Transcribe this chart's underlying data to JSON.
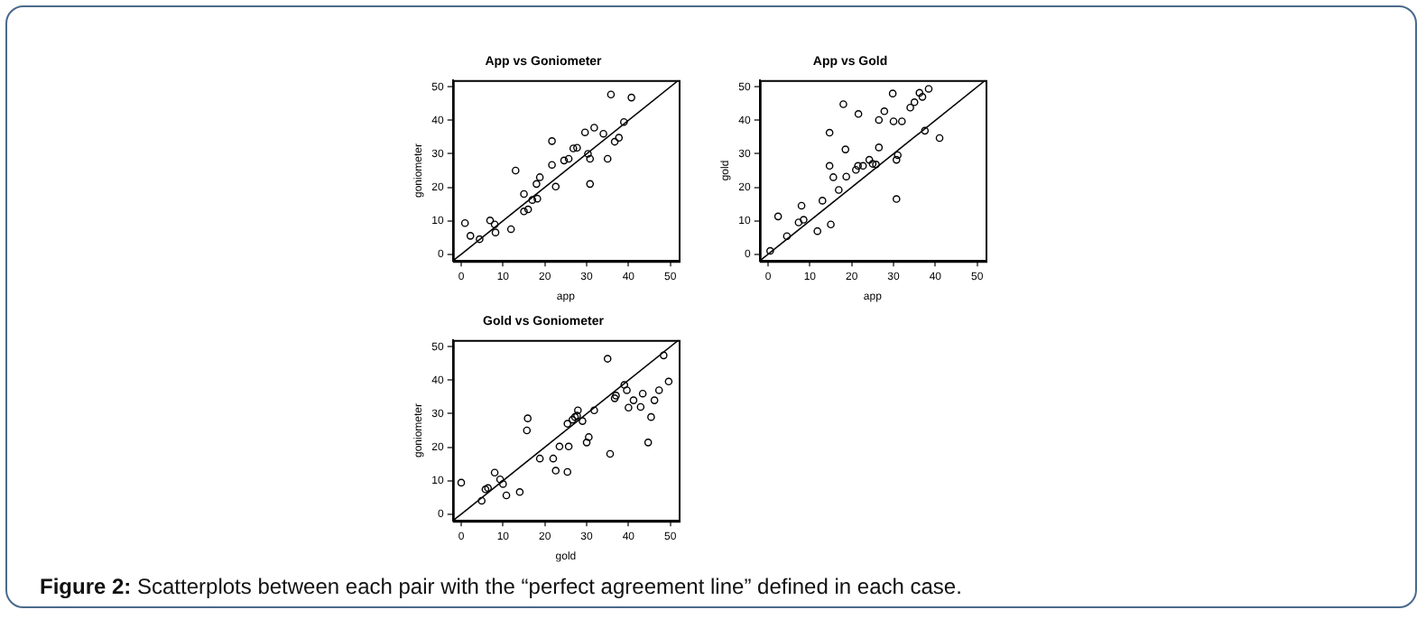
{
  "chart_data": [
    {
      "type": "scatter",
      "title": "App vs Goniometer",
      "xlabel": "app",
      "ylabel": "goniometer",
      "xlim": [
        -2,
        52
      ],
      "ylim": [
        -2,
        52
      ],
      "xticks": [
        0,
        10,
        20,
        30,
        40,
        50
      ],
      "yticks": [
        0,
        10,
        20,
        30,
        40,
        50
      ],
      "grid": false,
      "legend": false,
      "annotations": [
        "Figure 2: Scatterplots between each pair with the “perfect agreement line” defined in each case."
      ],
      "series": [
        {
          "type": "scatter",
          "marker": "circle",
          "color": "#000000",
          "x": [
            0.9,
            2.2,
            4.4,
            6.9,
            8,
            8.2,
            11.9,
            13,
            15,
            15,
            16,
            17,
            18.2,
            18,
            18.8,
            21.7,
            21.7,
            22.6,
            24.6,
            25.7,
            26.8,
            27.7,
            29.6,
            30.3,
            30.8,
            30.8,
            31.8,
            34,
            35,
            35.8,
            36.7,
            37.7,
            38.9,
            40.7
          ],
          "values": [
            9.3,
            5.5,
            4.5,
            10.1,
            8.9,
            6.5,
            7.5,
            25,
            12.8,
            18,
            13.4,
            16.2,
            16.6,
            21,
            23,
            33.8,
            26.7,
            20.2,
            28,
            28.5,
            31.6,
            31.8,
            36.4,
            30,
            28.5,
            21,
            37.8,
            36,
            28.5,
            47.7,
            33.6,
            34.8,
            39.5,
            46.8
          ]
        },
        {
          "type": "line",
          "color": "#000000",
          "x": [
            -2,
            52
          ],
          "values": [
            -2,
            52
          ]
        }
      ]
    },
    {
      "type": "scatter",
      "title": "App vs Gold",
      "xlabel": "app",
      "ylabel": "gold",
      "xlim": [
        -2,
        52
      ],
      "ylim": [
        -2,
        52
      ],
      "xticks": [
        0,
        10,
        20,
        30,
        40,
        50
      ],
      "yticks": [
        0,
        10,
        20,
        30,
        40,
        50
      ],
      "grid": false,
      "legend": false,
      "series": [
        {
          "type": "scatter",
          "marker": "circle",
          "color": "#000000",
          "x": [
            0.5,
            2.4,
            4.5,
            7.3,
            8,
            8.5,
            11.8,
            13,
            15,
            14.7,
            14.7,
            15.6,
            16.9,
            18,
            18.5,
            18.7,
            21,
            21.6,
            21.5,
            22.7,
            24.2,
            25,
            25.8,
            26.5,
            26.5,
            27.8,
            29.8,
            30,
            30.7,
            31,
            30.7,
            32,
            34,
            35,
            36.2,
            36.9,
            37.5,
            38.4,
            41
          ],
          "values": [
            1,
            11.3,
            5.4,
            9.5,
            14.5,
            10.3,
            6.9,
            16,
            8.9,
            26.4,
            36.3,
            23,
            19.2,
            44.8,
            31.3,
            23.2,
            25.2,
            41.9,
            26.4,
            26.4,
            28.2,
            27,
            26.8,
            31.9,
            40.1,
            42.7,
            48,
            39.7,
            28.2,
            29.6,
            16.5,
            39.7,
            43.8,
            45.4,
            48.2,
            47,
            36.9,
            49.4,
            34.7
          ]
        },
        {
          "type": "line",
          "color": "#000000",
          "x": [
            -2,
            52
          ],
          "values": [
            -2,
            52
          ]
        }
      ]
    },
    {
      "type": "scatter",
      "title": "Gold vs Goniometer",
      "xlabel": "gold",
      "ylabel": "goniometer",
      "xlim": [
        -2,
        52
      ],
      "ylim": [
        -2,
        52
      ],
      "xticks": [
        0,
        10,
        20,
        30,
        40,
        50
      ],
      "yticks": [
        0,
        10,
        20,
        30,
        40,
        50
      ],
      "grid": false,
      "legend": false,
      "series": [
        {
          "type": "scatter",
          "marker": "circle",
          "color": "#000000",
          "x": [
            0,
            4.9,
            5.8,
            6.4,
            8,
            9.3,
            10,
            10.8,
            14,
            15.7,
            15.9,
            18.8,
            22,
            22.6,
            23.5,
            25.4,
            25.7,
            25.4,
            26.6,
            27.2,
            27.7,
            27.9,
            29,
            30,
            30.5,
            31.8,
            35,
            35.6,
            36.7,
            37,
            39,
            39.6,
            40,
            41.2,
            42.9,
            43.4,
            44.7,
            45.4,
            46.2,
            47.3,
            48.4,
            49.6
          ],
          "values": [
            9.4,
            4,
            7.4,
            7.8,
            12.4,
            10.4,
            9,
            5.6,
            6.6,
            25,
            28.6,
            16.6,
            16.6,
            13,
            20.2,
            12.6,
            20.2,
            27,
            28.2,
            29,
            29.4,
            31,
            27.8,
            21.4,
            23,
            31,
            46.4,
            18,
            34.6,
            35.4,
            38.6,
            37,
            31.8,
            34,
            32,
            36,
            21.4,
            29,
            34,
            37,
            47.4,
            39.6
          ]
        },
        {
          "type": "line",
          "color": "#000000",
          "x": [
            -2,
            52
          ],
          "values": [
            -2,
            52
          ]
        }
      ]
    }
  ]
}
